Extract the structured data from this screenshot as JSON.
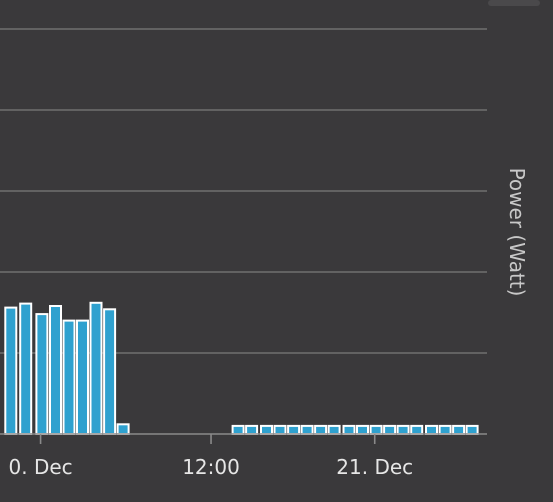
{
  "chart_data": {
    "type": "bar",
    "ylabel": "Power (Watt)",
    "x_tick_labels": [
      "0. Dec",
      "12:00",
      "21. Dec"
    ],
    "bar_color": "#2fa1cf",
    "bar_edge_color": "#ffffff",
    "grid": true,
    "ylim": [
      0,
      5
    ],
    "gridlines": [
      1,
      2,
      3,
      4,
      5
    ],
    "x_domain": [
      -0.5,
      17.5
    ],
    "x_ticks": [
      1.0,
      7.3,
      13.35
    ],
    "bars": [
      {
        "x": -0.1,
        "value": 1.56
      },
      {
        "x": 0.45,
        "value": 1.61
      },
      {
        "x": 1.05,
        "value": 1.48
      },
      {
        "x": 1.55,
        "value": 1.58
      },
      {
        "x": 2.05,
        "value": 1.4
      },
      {
        "x": 2.55,
        "value": 1.4
      },
      {
        "x": 3.05,
        "value": 1.62
      },
      {
        "x": 3.55,
        "value": 1.54
      },
      {
        "x": 4.05,
        "value": 0.12
      },
      {
        "x": 8.3,
        "value": 0.1
      },
      {
        "x": 8.8,
        "value": 0.1
      },
      {
        "x": 9.35,
        "value": 0.1
      },
      {
        "x": 9.85,
        "value": 0.1
      },
      {
        "x": 10.35,
        "value": 0.1
      },
      {
        "x": 10.85,
        "value": 0.1
      },
      {
        "x": 11.35,
        "value": 0.1
      },
      {
        "x": 11.85,
        "value": 0.1
      },
      {
        "x": 12.4,
        "value": 0.1
      },
      {
        "x": 12.9,
        "value": 0.1
      },
      {
        "x": 13.4,
        "value": 0.1
      },
      {
        "x": 13.9,
        "value": 0.1
      },
      {
        "x": 14.4,
        "value": 0.1
      },
      {
        "x": 14.9,
        "value": 0.1
      },
      {
        "x": 15.45,
        "value": 0.1
      },
      {
        "x": 15.95,
        "value": 0.1
      },
      {
        "x": 16.45,
        "value": 0.1
      },
      {
        "x": 16.95,
        "value": 0.1
      }
    ]
  }
}
